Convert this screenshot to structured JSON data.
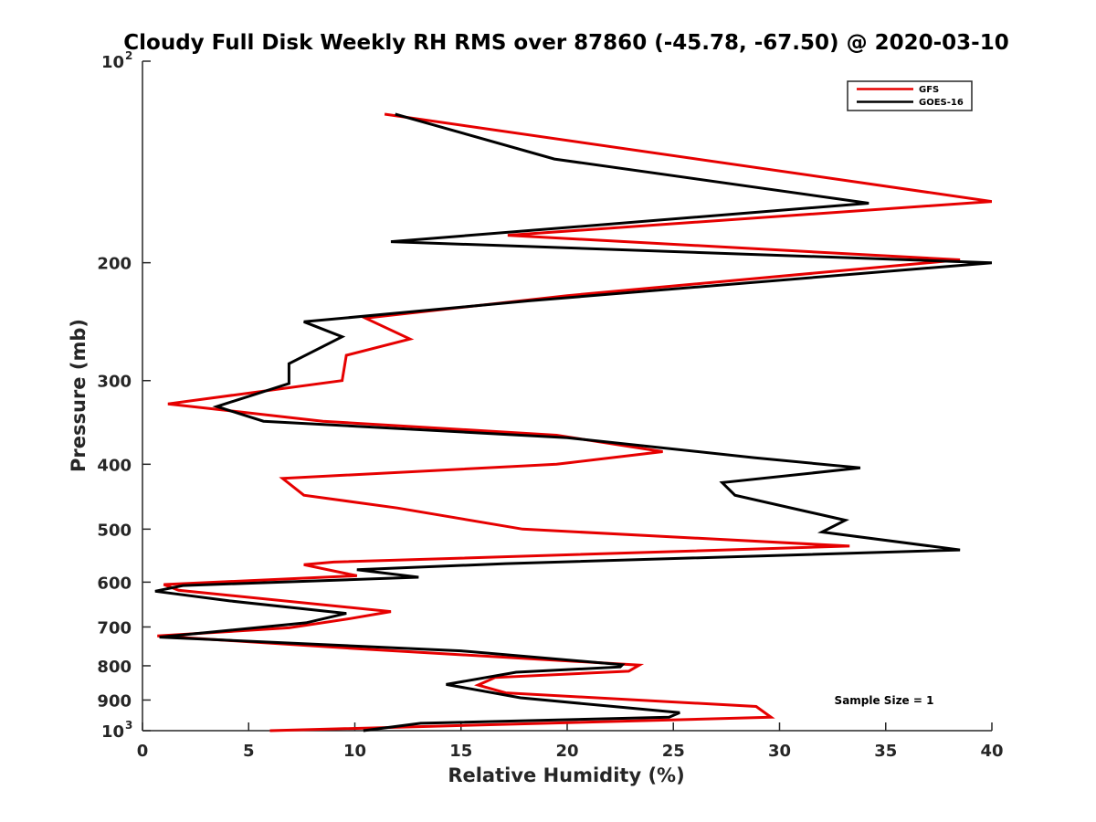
{
  "chart_data": {
    "type": "line",
    "title": "Cloudy Full Disk Weekly RH RMS over 87860 (-45.78, -67.50) @ 2020-03-10",
    "xlabel": "Relative Humidity (%)",
    "ylabel": "Pressure (mb)",
    "xlim": [
      0,
      40
    ],
    "ylim": [
      100,
      1000
    ],
    "yscale": "log",
    "y_reversed": true,
    "grid": false,
    "legend_position": "top-right",
    "x_ticks": [
      {
        "value": 0,
        "label": "0"
      },
      {
        "value": 5,
        "label": "5"
      },
      {
        "value": 10,
        "label": "10"
      },
      {
        "value": 15,
        "label": "15"
      },
      {
        "value": 20,
        "label": "20"
      },
      {
        "value": 25,
        "label": "25"
      },
      {
        "value": 30,
        "label": "30"
      },
      {
        "value": 35,
        "label": "35"
      },
      {
        "value": 40,
        "label": "40"
      }
    ],
    "y_ticks": [
      {
        "value": 100,
        "label": "10",
        "sup": "2"
      },
      {
        "value": 200,
        "label": "200"
      },
      {
        "value": 300,
        "label": "300"
      },
      {
        "value": 400,
        "label": "400"
      },
      {
        "value": 500,
        "label": "500"
      },
      {
        "value": 600,
        "label": "600"
      },
      {
        "value": 700,
        "label": "700"
      },
      {
        "value": 800,
        "label": "800"
      },
      {
        "value": 900,
        "label": "900"
      },
      {
        "value": 1000,
        "label": "10",
        "sup": "3"
      }
    ],
    "series": [
      {
        "name": "GFS",
        "color": "#e60000",
        "points": [
          [
            11.4,
            120
          ],
          [
            40.0,
            162
          ],
          [
            17.2,
            182
          ],
          [
            38.5,
            198
          ],
          [
            20.0,
            224
          ],
          [
            10.5,
            242
          ],
          [
            12.6,
            260
          ],
          [
            9.6,
            275
          ],
          [
            9.4,
            300
          ],
          [
            1.2,
            325
          ],
          [
            8.5,
            345
          ],
          [
            19.5,
            362
          ],
          [
            24.5,
            383
          ],
          [
            19.5,
            400
          ],
          [
            6.6,
            420
          ],
          [
            7.6,
            445
          ],
          [
            12.0,
            465
          ],
          [
            17.9,
            500
          ],
          [
            33.3,
            530
          ],
          [
            9.0,
            560
          ],
          [
            7.6,
            565
          ],
          [
            10.1,
            587
          ],
          [
            1.0,
            605
          ],
          [
            1.7,
            617
          ],
          [
            11.7,
            664
          ],
          [
            9.8,
            680
          ],
          [
            6.9,
            702
          ],
          [
            0.7,
            722
          ],
          [
            10.3,
            755
          ],
          [
            23.4,
            798
          ],
          [
            22.9,
            815
          ],
          [
            16.6,
            833
          ],
          [
            15.8,
            855
          ],
          [
            17.1,
            878
          ],
          [
            28.9,
            920
          ],
          [
            29.6,
            955
          ],
          [
            6.0,
            1000
          ]
        ]
      },
      {
        "name": "GOES-16",
        "color": "#000000",
        "points": [
          [
            11.9,
            120
          ],
          [
            19.4,
            140
          ],
          [
            34.2,
            163
          ],
          [
            11.7,
            186
          ],
          [
            40.0,
            200
          ],
          [
            18.2,
            228
          ],
          [
            7.6,
            245
          ],
          [
            9.4,
            258
          ],
          [
            6.9,
            283
          ],
          [
            6.9,
            303
          ],
          [
            3.5,
            328
          ],
          [
            5.7,
            345
          ],
          [
            20.0,
            365
          ],
          [
            28.8,
            391
          ],
          [
            33.8,
            405
          ],
          [
            27.3,
            426
          ],
          [
            27.9,
            445
          ],
          [
            31.2,
            470
          ],
          [
            33.1,
            485
          ],
          [
            32.0,
            505
          ],
          [
            38.5,
            537
          ],
          [
            17.1,
            563
          ],
          [
            10.1,
            575
          ],
          [
            13.0,
            590
          ],
          [
            1.9,
            607
          ],
          [
            0.6,
            619
          ],
          [
            4.1,
            640
          ],
          [
            9.6,
            668
          ],
          [
            7.7,
            690
          ],
          [
            0.8,
            725
          ],
          [
            15.0,
            760
          ],
          [
            22.6,
            797
          ],
          [
            22.5,
            803
          ],
          [
            17.6,
            818
          ],
          [
            14.3,
            853
          ],
          [
            17.8,
            893
          ],
          [
            25.3,
            940
          ],
          [
            24.8,
            955
          ],
          [
            13.1,
            975
          ],
          [
            10.4,
            1000
          ]
        ]
      }
    ],
    "annotations": [
      {
        "text": "Sample Size = 1"
      }
    ]
  }
}
